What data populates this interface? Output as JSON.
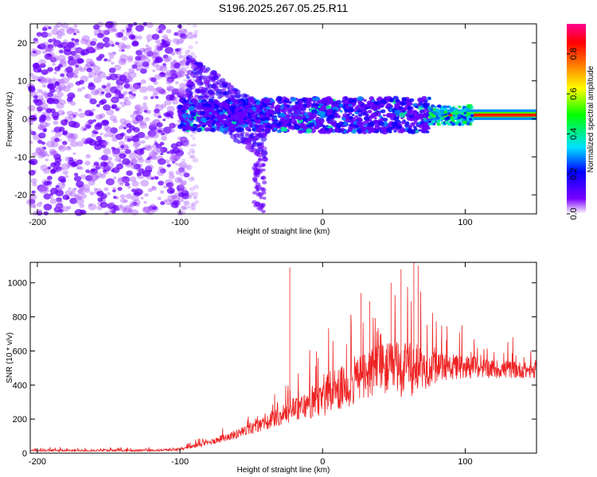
{
  "chart_data": [
    {
      "type": "heatmap",
      "title": "S196.2025.267.05.25.R11",
      "xlabel": "Height of straight line (km)",
      "ylabel": "Frequency (Hz)",
      "xlim": [
        -205,
        150
      ],
      "ylim": [
        -25,
        25
      ],
      "xticks": [
        -200,
        -100,
        0,
        100
      ],
      "yticks": [
        20,
        10,
        0,
        -10,
        -20
      ],
      "colorbar": {
        "label": "Normalized spectral amplitude",
        "range": [
          0,
          0.95
        ],
        "ticks": [
          0.0,
          0.2,
          0.4,
          0.6,
          0.8
        ],
        "tick_labels": [
          "0.0",
          "0.2",
          "0.4",
          "0.6",
          "0.8"
        ],
        "colors": [
          "#ffffff",
          "#7a00ff",
          "#0000ff",
          "#00e0ff",
          "#00ff00",
          "#ffff00",
          "#ff8000",
          "#ff0000",
          "#ff0090"
        ]
      },
      "regions": [
        {
          "name": "noise",
          "x_range": [
            -205,
            -95
          ],
          "y_range": [
            -25,
            25
          ],
          "amplitude": 0.05
        },
        {
          "name": "descending-branch",
          "x_range": [
            -90,
            -45
          ],
          "y_center": [
            10,
            -5
          ],
          "amplitude": 0.2
        },
        {
          "name": "signal-track",
          "x_range": [
            -100,
            75
          ],
          "y_center": 1,
          "amplitude": 0.25
        },
        {
          "name": "strong-tone",
          "x_range": [
            75,
            150
          ],
          "y_center": 1,
          "amplitude": 0.95
        }
      ]
    },
    {
      "type": "line",
      "xlabel": "Height of straight line (km)",
      "ylabel": "SNR (10 * v/v)",
      "xlim": [
        -205,
        150
      ],
      "ylim": [
        0,
        1120
      ],
      "xticks": [
        -200,
        -100,
        0,
        100
      ],
      "yticks": [
        0,
        200,
        400,
        600,
        800,
        1000
      ],
      "series": [
        {
          "name": "SNR",
          "color": "#ee2222",
          "envelope": {
            "x": [
              -205,
              -120,
              -100,
              -80,
              -60,
              -40,
              -20,
              0,
              20,
              40,
              60,
              80,
              100,
              120,
              150
            ],
            "baseline": [
              15,
              15,
              20,
              60,
              110,
              170,
              250,
              300,
              400,
              480,
              470,
              490,
              500,
              490,
              480
            ],
            "peak_amplitude": [
              20,
              20,
              25,
              60,
              100,
              150,
              240,
              380,
              520,
              560,
              600,
              320,
              250,
              200,
              170
            ]
          },
          "spikes": [
            {
              "x": -23,
              "y": 1090
            },
            {
              "x": 48,
              "y": 1000
            },
            {
              "x": 55,
              "y": 1080
            },
            {
              "x": 64,
              "y": 1120
            },
            {
              "x": 67,
              "y": 1100
            },
            {
              "x": 27,
              "y": 940
            },
            {
              "x": 33,
              "y": 890
            }
          ]
        }
      ]
    }
  ]
}
